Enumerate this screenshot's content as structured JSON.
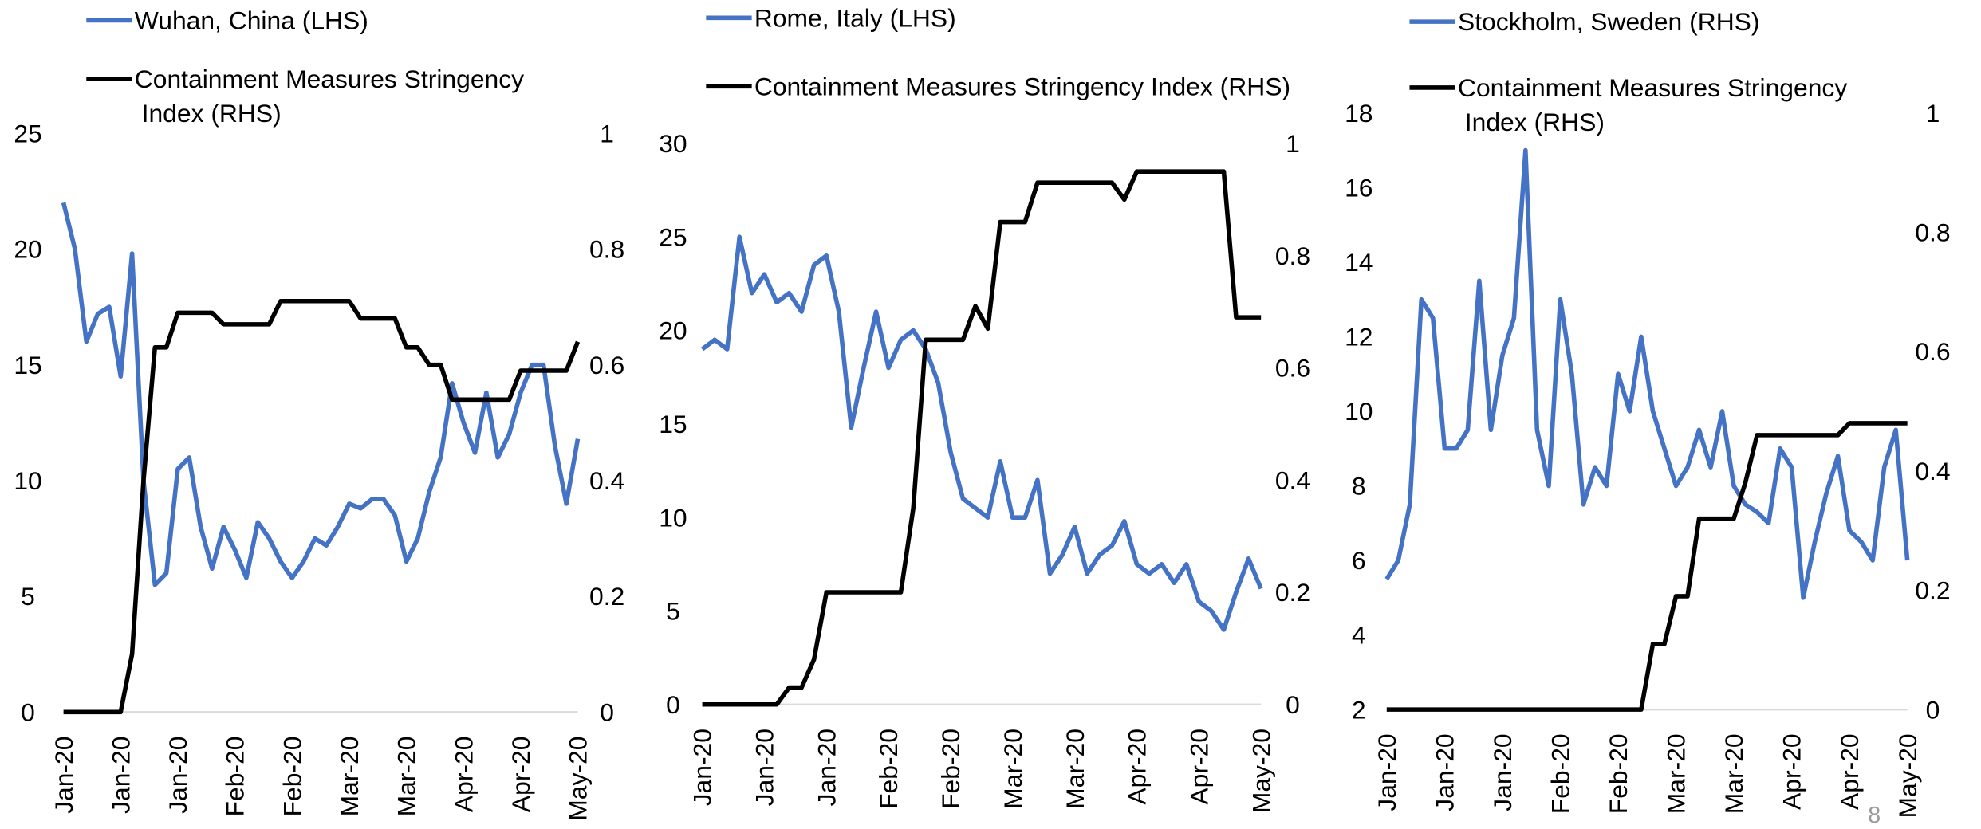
{
  "chart_data": [
    {
      "type": "line",
      "categories": [
        "Jan-20",
        null,
        null,
        null,
        null,
        "Jan-20",
        null,
        null,
        null,
        null,
        "Jan-20",
        null,
        null,
        null,
        null,
        "Feb-20",
        null,
        null,
        null,
        null,
        "Feb-20",
        null,
        null,
        null,
        null,
        "Mar-20",
        null,
        null,
        null,
        null,
        "Mar-20",
        null,
        null,
        null,
        null,
        "Apr-20",
        null,
        null,
        null,
        null,
        "Apr-20",
        null,
        null,
        null,
        null,
        "May-20"
      ],
      "series": [
        {
          "name": "Wuhan, China (LHS)",
          "color": "#4472c4",
          "values": [
            22,
            20,
            16,
            17.2,
            17.5,
            14.5,
            19.8,
            10,
            5.5,
            6,
            10.5,
            11,
            8,
            6.2,
            8,
            7,
            5.8,
            8.2,
            7.5,
            6.5,
            5.8,
            6.5,
            7.5,
            7.2,
            8,
            9,
            8.8,
            9.2,
            9.2,
            8.5,
            6.5,
            7.5,
            9.5,
            11,
            14.2,
            12.5,
            11.2,
            13.8,
            11,
            12,
            13.8,
            15,
            15,
            11.5,
            9,
            11.8
          ]
        },
        {
          "name": "Containment Measures Stringency Index (RHS)",
          "color": "#000000",
          "axis": "y2",
          "values": [
            0,
            0,
            0,
            0,
            0,
            0,
            0.1,
            0.4,
            0.63,
            0.63,
            0.69,
            0.69,
            0.69,
            0.69,
            0.67,
            0.67,
            0.67,
            0.67,
            0.67,
            0.71,
            0.71,
            0.71,
            0.71,
            0.71,
            0.71,
            0.71,
            0.68,
            0.68,
            0.68,
            0.68,
            0.63,
            0.63,
            0.6,
            0.6,
            0.54,
            0.54,
            0.54,
            0.54,
            0.54,
            0.54,
            0.59,
            0.59,
            0.59,
            0.59,
            0.59,
            0.64
          ]
        }
      ],
      "ylim": [
        0,
        25
      ],
      "yticks": [
        0,
        5,
        10,
        15,
        20,
        25
      ],
      "y2lim": [
        0,
        1
      ],
      "y2ticks": [
        0,
        0.2,
        0.4,
        0.6,
        0.8,
        1
      ]
    },
    {
      "type": "line",
      "categories": [
        "Jan-20",
        null,
        null,
        null,
        null,
        "Jan-20",
        null,
        null,
        null,
        null,
        "Jan-20",
        null,
        null,
        null,
        null,
        "Feb-20",
        null,
        null,
        null,
        null,
        "Feb-20",
        null,
        null,
        null,
        null,
        "Mar-20",
        null,
        null,
        null,
        null,
        "Mar-20",
        null,
        null,
        null,
        null,
        "Apr-20",
        null,
        null,
        null,
        null,
        "Apr-20",
        null,
        null,
        null,
        null,
        "May-20"
      ],
      "series": [
        {
          "name": "Rome, Italy (LHS)",
          "color": "#4472c4",
          "values": [
            19,
            19.5,
            19,
            25,
            22,
            23,
            21.5,
            22,
            21,
            23.5,
            24,
            21,
            14.8,
            18,
            21,
            18,
            19.5,
            20,
            19,
            17.2,
            13.5,
            11,
            10.5,
            10,
            13,
            10,
            10,
            12,
            7,
            8,
            9.5,
            7,
            8,
            8.5,
            9.8,
            7.5,
            7,
            7.5,
            6.5,
            7.5,
            5.5,
            5,
            4,
            6,
            7.8,
            6.2
          ]
        },
        {
          "name": "Containment Measures Stringency Index (RHS)",
          "color": "#000000",
          "axis": "y2",
          "values": [
            0,
            0,
            0,
            0,
            0,
            0,
            0,
            0.03,
            0.03,
            0.08,
            0.2,
            0.2,
            0.2,
            0.2,
            0.2,
            0.2,
            0.2,
            0.35,
            0.65,
            0.65,
            0.65,
            0.65,
            0.71,
            0.67,
            0.86,
            0.86,
            0.86,
            0.93,
            0.93,
            0.93,
            0.93,
            0.93,
            0.93,
            0.93,
            0.9,
            0.95,
            0.95,
            0.95,
            0.95,
            0.95,
            0.95,
            0.95,
            0.95,
            0.69,
            0.69,
            0.69
          ]
        }
      ],
      "ylim": [
        0,
        30
      ],
      "yticks": [
        0,
        5,
        10,
        15,
        20,
        25,
        30
      ],
      "y2lim": [
        0,
        1
      ],
      "y2ticks": [
        0,
        0.2,
        0.4,
        0.6,
        0.8,
        1
      ]
    },
    {
      "type": "line",
      "categories": [
        "Jan-20",
        null,
        null,
        null,
        null,
        "Jan-20",
        null,
        null,
        null,
        null,
        "Jan-20",
        null,
        null,
        null,
        null,
        "Feb-20",
        null,
        null,
        null,
        null,
        "Feb-20",
        null,
        null,
        null,
        null,
        "Mar-20",
        null,
        null,
        null,
        null,
        "Mar-20",
        null,
        null,
        null,
        null,
        "Apr-20",
        null,
        null,
        null,
        null,
        "Apr-20",
        null,
        null,
        null,
        null,
        "May-20"
      ],
      "series": [
        {
          "name": "Stockholm, Sweden (RHS)",
          "color": "#4472c4",
          "values": [
            5.5,
            6,
            7.5,
            13,
            12.5,
            9,
            9,
            9.5,
            13.5,
            9.5,
            11.5,
            12.5,
            17,
            9.5,
            8,
            13,
            11,
            7.5,
            8.5,
            8,
            11,
            10,
            12,
            10,
            9,
            8,
            8.5,
            9.5,
            8.5,
            10,
            8,
            7.5,
            7.3,
            7,
            9,
            8.5,
            5,
            6.5,
            7.8,
            8.8,
            6.8,
            6.5,
            6,
            8.5,
            9.5,
            6
          ]
        },
        {
          "name": "Containment Measures Stringency Index (RHS)",
          "color": "#000000",
          "axis": "y2",
          "values": [
            0,
            0,
            0,
            0,
            0,
            0,
            0,
            0,
            0,
            0,
            0,
            0,
            0,
            0,
            0,
            0,
            0,
            0,
            0,
            0,
            0,
            0,
            0,
            0.11,
            0.11,
            0.19,
            0.19,
            0.32,
            0.32,
            0.32,
            0.32,
            0.38,
            0.46,
            0.46,
            0.46,
            0.46,
            0.46,
            0.46,
            0.46,
            0.46,
            0.48,
            0.48,
            0.48,
            0.48,
            0.48,
            0.48
          ]
        }
      ],
      "ylim": [
        2,
        18
      ],
      "yticks": [
        2,
        4,
        6,
        8,
        10,
        12,
        14,
        16,
        18
      ],
      "y2lim": [
        0,
        1
      ],
      "y2ticks": [
        0,
        0.2,
        0.4,
        0.6,
        0.8,
        1
      ]
    }
  ],
  "page_number": "8"
}
